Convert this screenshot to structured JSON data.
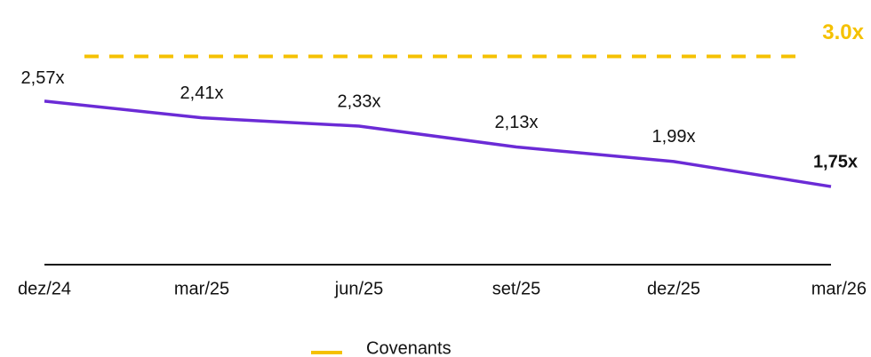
{
  "chart_data": {
    "type": "line",
    "categories": [
      "dez/24",
      "mar/25",
      "jun/25",
      "set/25",
      "dez/25",
      "mar/26"
    ],
    "series": [
      {
        "color": "#6b2bd6",
        "values": [
          2.57,
          2.41,
          2.33,
          2.13,
          1.99,
          1.75
        ],
        "value_labels": [
          "2,57x",
          "2,41x",
          "2,33x",
          "2,13x",
          "1,99x",
          "1,75x"
        ]
      }
    ],
    "reference_line": {
      "name": "Covenants",
      "value": 3.0,
      "label": "3.0x",
      "color": "#f5c100"
    },
    "ylim": [
      1,
      3.2
    ]
  }
}
